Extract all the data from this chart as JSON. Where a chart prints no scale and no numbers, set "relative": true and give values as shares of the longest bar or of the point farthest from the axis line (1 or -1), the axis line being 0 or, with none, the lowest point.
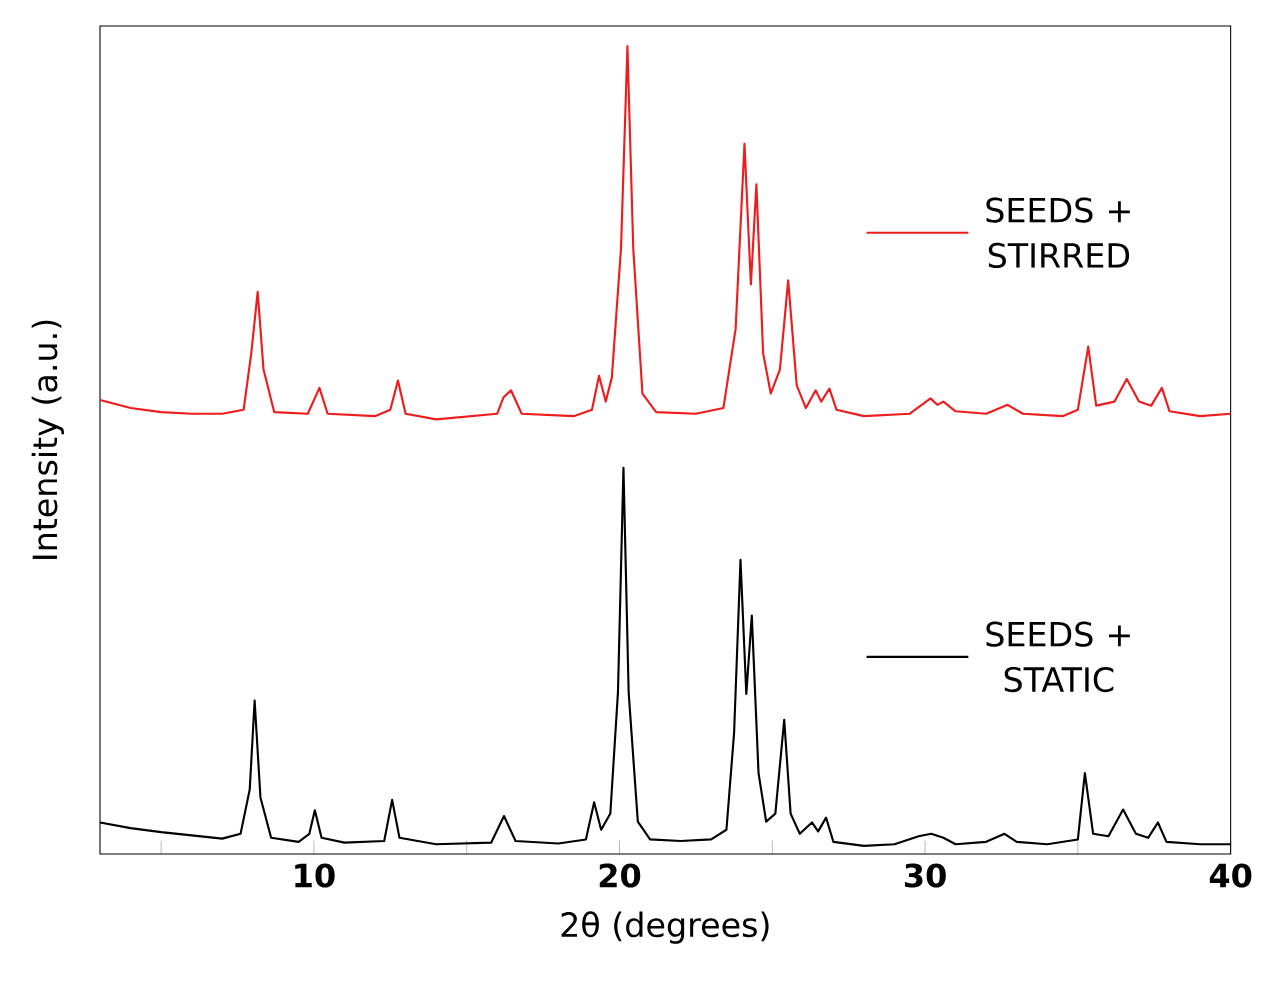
{
  "chart_data": {
    "type": "line",
    "relative": true,
    "xlabel": "2θ (degrees)",
    "ylabel": "Intensity (a.u.)",
    "xlim": [
      3,
      40
    ],
    "xticks": [
      {
        "value": 5,
        "label": null
      },
      10,
      {
        "value": 15,
        "label": null
      },
      20,
      {
        "value": 25,
        "label": null
      },
      30,
      {
        "value": 35,
        "label": null
      },
      40
    ],
    "legend": "right",
    "line_style": "solid",
    "marker": "none",
    "series": [
      {
        "name": "SEEDS + STIRRED",
        "color": "#ee1c1c",
        "x": [
          3,
          4,
          5,
          6,
          7,
          7.7,
          7.95,
          8.16,
          8.35,
          8.7,
          9.8,
          10.18,
          10.45,
          12,
          12.5,
          12.75,
          13.0,
          14,
          16,
          16.2,
          16.45,
          16.8,
          18.5,
          19.1,
          19.33,
          19.55,
          19.75,
          20.05,
          20.26,
          20.45,
          20.75,
          21.2,
          22.5,
          23.4,
          23.8,
          24.09,
          24.3,
          24.48,
          24.7,
          24.95,
          25.25,
          25.52,
          25.8,
          26.1,
          26.42,
          26.6,
          26.87,
          27.1,
          28,
          29.5,
          30.18,
          30.4,
          30.6,
          31,
          32,
          32.7,
          33.2,
          34.5,
          35.0,
          35.34,
          35.6,
          36.2,
          36.6,
          37.0,
          37.4,
          37.75,
          38.0,
          39,
          40
        ],
        "values": [
          0.562,
          0.552,
          0.547,
          0.545,
          0.545,
          0.55,
          0.62,
          0.696,
          0.6,
          0.547,
          0.545,
          0.577,
          0.545,
          0.542,
          0.55,
          0.586,
          0.545,
          0.538,
          0.545,
          0.565,
          0.574,
          0.545,
          0.542,
          0.55,
          0.592,
          0.56,
          0.59,
          0.75,
          1.0,
          0.75,
          0.57,
          0.547,
          0.545,
          0.552,
          0.65,
          0.879,
          0.705,
          0.829,
          0.62,
          0.57,
          0.6,
          0.71,
          0.58,
          0.552,
          0.574,
          0.56,
          0.576,
          0.55,
          0.542,
          0.545,
          0.564,
          0.556,
          0.56,
          0.548,
          0.545,
          0.556,
          0.545,
          0.542,
          0.55,
          0.628,
          0.555,
          0.56,
          0.588,
          0.56,
          0.555,
          0.577,
          0.548,
          0.542,
          0.545
        ]
      },
      {
        "name": "SEEDS + STATIC",
        "color": "#000000",
        "x": [
          3,
          4,
          5,
          6,
          7,
          7.6,
          7.9,
          8.06,
          8.25,
          8.6,
          9.5,
          9.85,
          10.03,
          10.25,
          11,
          12.3,
          12.56,
          12.8,
          14,
          15.8,
          16.22,
          16.6,
          18,
          18.9,
          19.17,
          19.4,
          19.7,
          19.95,
          20.13,
          20.3,
          20.6,
          21,
          22,
          23,
          23.5,
          23.75,
          23.96,
          24.15,
          24.33,
          24.55,
          24.8,
          25.1,
          25.39,
          25.6,
          25.9,
          26.3,
          26.5,
          26.76,
          27.0,
          28,
          29,
          29.79,
          30.2,
          30.6,
          31,
          32,
          32.6,
          33,
          34,
          35,
          35.23,
          35.5,
          36,
          36.48,
          36.9,
          37.3,
          37.62,
          37.9,
          39,
          40
        ],
        "values": [
          0.039,
          0.032,
          0.027,
          0.023,
          0.019,
          0.025,
          0.08,
          0.19,
          0.07,
          0.02,
          0.015,
          0.025,
          0.054,
          0.02,
          0.014,
          0.016,
          0.067,
          0.02,
          0.012,
          0.014,
          0.047,
          0.016,
          0.013,
          0.018,
          0.064,
          0.03,
          0.05,
          0.2,
          0.478,
          0.2,
          0.04,
          0.018,
          0.016,
          0.018,
          0.03,
          0.15,
          0.364,
          0.198,
          0.295,
          0.1,
          0.04,
          0.05,
          0.166,
          0.05,
          0.025,
          0.039,
          0.028,
          0.045,
          0.015,
          0.01,
          0.012,
          0.022,
          0.025,
          0.02,
          0.012,
          0.015,
          0.025,
          0.015,
          0.012,
          0.018,
          0.1,
          0.025,
          0.022,
          0.055,
          0.025,
          0.02,
          0.039,
          0.015,
          0.012,
          0.012
        ]
      }
    ]
  }
}
